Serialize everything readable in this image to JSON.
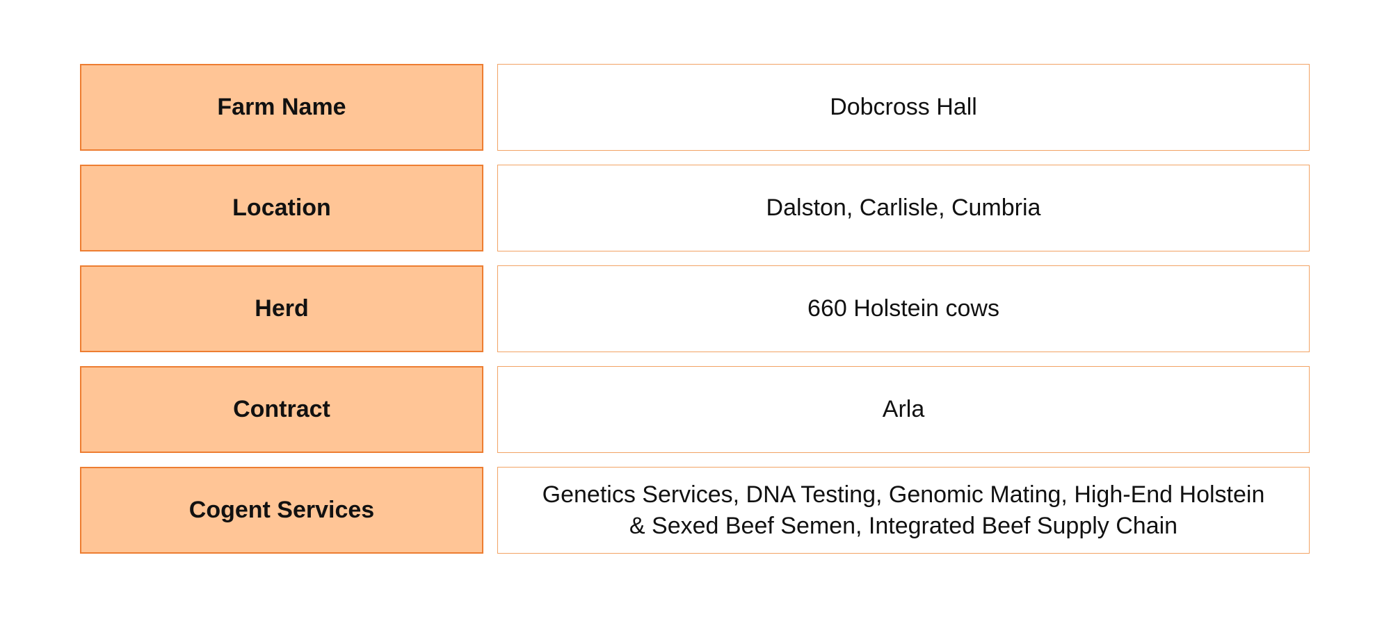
{
  "page": {
    "background": "#ffffff"
  },
  "colors": {
    "label_fill": "#FFC596",
    "label_border": "#ED7D31",
    "value_border": "#F2A263",
    "text": "#111111"
  },
  "rows": [
    {
      "label": "Farm Name",
      "value": "Dobcross Hall"
    },
    {
      "label": "Location",
      "value": "Dalston, Carlisle, Cumbria"
    },
    {
      "label": "Herd",
      "value": "660 Holstein cows"
    },
    {
      "label": "Contract",
      "value": "Arla"
    },
    {
      "label": "Cogent Services",
      "value": "Genetics Services, DNA Testing, Genomic Mating, High-End Holstein\n& Sexed Beef Semen, Integrated Beef Supply Chain"
    }
  ]
}
